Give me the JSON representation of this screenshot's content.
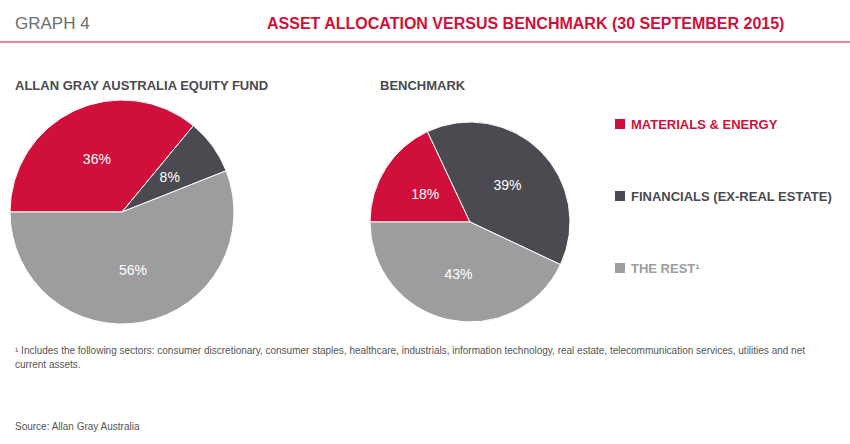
{
  "header": {
    "label": "GRAPH 4",
    "title": "ASSET ALLOCATION VERSUS BENCHMARK (30 SEPTEMBER 2015)"
  },
  "chart_data": [
    {
      "type": "pie",
      "title": "ALLAN GRAY AUSTRALIA EQUITY FUND",
      "categories": [
        "MATERIALS & ENERGY",
        "FINANCIALS (EX-REAL ESTATE)",
        "THE REST¹"
      ],
      "values": [
        36,
        8,
        56
      ],
      "value_labels": [
        "36%",
        "8%",
        "56%"
      ],
      "colors": [
        "#d0103a",
        "#4a4a50",
        "#9d9d9f"
      ],
      "data_labels": true
    },
    {
      "type": "pie",
      "title": "BENCHMARK",
      "categories": [
        "MATERIALS & ENERGY",
        "FINANCIALS (EX-REAL ESTATE)",
        "THE REST¹"
      ],
      "values": [
        18,
        39,
        43
      ],
      "value_labels": [
        "18%",
        "39%",
        "43%"
      ],
      "colors": [
        "#d0103a",
        "#4a4a50",
        "#9d9d9f"
      ],
      "data_labels": true,
      "legend": "right"
    }
  ],
  "footnote": "¹ Includes the following sectors: consumer discretionary, consumer staples, healthcare, industrials, information technology, real estate, telecommunication services, utilities and net current assets.",
  "source": "Source: Allan Gray Australia"
}
